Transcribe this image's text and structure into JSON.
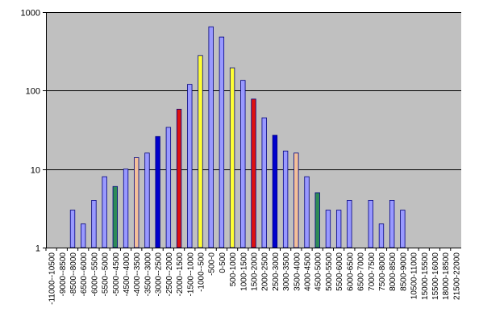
{
  "chart_data": {
    "type": "bar",
    "title": "",
    "xlabel": "",
    "ylabel": "",
    "yscale": "log",
    "ylim": [
      1,
      1000
    ],
    "yticks": [
      {
        "value": 1,
        "label": "1"
      },
      {
        "value": 10,
        "label": "10"
      },
      {
        "value": 100,
        "label": "100"
      },
      {
        "value": 1000,
        "label": "1000"
      }
    ],
    "grid": true,
    "legend": "none",
    "plot_background": "#c0c0c0",
    "bar_outline": "#000080",
    "categories": [
      "-11000--10500",
      "-9000--8500",
      "-8500--8000",
      "-6500--6000",
      "-6000--5500",
      "-5500--5000",
      "-5000--4500",
      "-4500--4000",
      "-4000--3500",
      "-3500--3000",
      "-3000--2500",
      "-2500--2000",
      "-2000--1500",
      "-1500--1000",
      "-1000--500",
      "-500-0",
      "0-500",
      "500-1000",
      "1000-1500",
      "1500-2000",
      "2000-2500",
      "2500-3000",
      "3000-3500",
      "3500-4000",
      "4000-4500",
      "4500-5000",
      "5000-5500",
      "5500-6000",
      "6000-6500",
      "6500-7000",
      "7000-7500",
      "7500-8000",
      "8000-8500",
      "8500-9000",
      "10500-11000",
      "15000-15500",
      "15500-16000",
      "18000-18500",
      "21500-22000"
    ],
    "values": [
      1,
      1,
      3,
      2,
      4,
      8,
      6,
      10,
      14,
      16,
      26,
      34,
      58,
      120,
      280,
      650,
      480,
      195,
      135,
      78,
      45,
      27,
      17,
      16,
      8,
      5,
      3,
      3,
      4,
      1,
      4,
      2,
      4,
      3,
      1,
      1,
      1,
      1,
      1
    ],
    "colors": [
      "#9999ff",
      "#9999ff",
      "#9999ff",
      "#9999ff",
      "#9999ff",
      "#9999ff",
      "#2e8b57",
      "#9999ff",
      "#f4c09a",
      "#9999ff",
      "#0000cc",
      "#9999ff",
      "#dd1111",
      "#9999ff",
      "#ffff33",
      "#9999ff",
      "#9999ff",
      "#ffff33",
      "#9999ff",
      "#dd1111",
      "#9999ff",
      "#0000cc",
      "#9999ff",
      "#f4c09a",
      "#9999ff",
      "#2e8b57",
      "#9999ff",
      "#9999ff",
      "#9999ff",
      "#9999ff",
      "#9999ff",
      "#9999ff",
      "#9999ff",
      "#9999ff",
      "#9999ff",
      "#9999ff",
      "#9999ff",
      "#9999ff",
      "#9999ff"
    ]
  }
}
